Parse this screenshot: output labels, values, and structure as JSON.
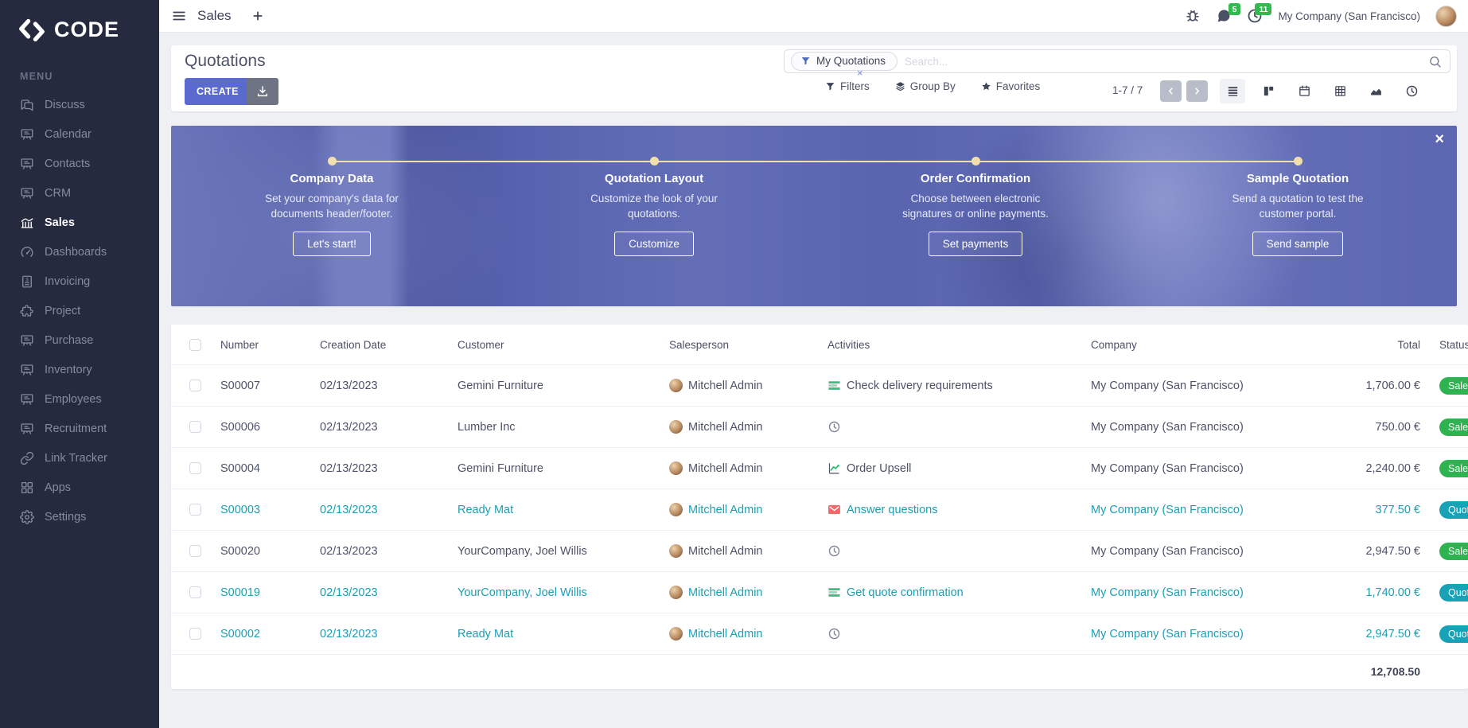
{
  "app": {
    "brand": "CODE",
    "menu_label": "MENU"
  },
  "topbar": {
    "title": "Sales",
    "messages_badge": "5",
    "activities_badge": "11",
    "company": "My Company (San Francisco)"
  },
  "sidebar": {
    "items": [
      {
        "label": "Discuss",
        "icon": "discuss",
        "active": false
      },
      {
        "label": "Calendar",
        "icon": "board",
        "active": false
      },
      {
        "label": "Contacts",
        "icon": "board",
        "active": false
      },
      {
        "label": "CRM",
        "icon": "board",
        "active": false
      },
      {
        "label": "Sales",
        "icon": "bank",
        "active": true
      },
      {
        "label": "Dashboards",
        "icon": "gauge",
        "active": false
      },
      {
        "label": "Invoicing",
        "icon": "invoice",
        "active": false
      },
      {
        "label": "Project",
        "icon": "puzzle",
        "active": false
      },
      {
        "label": "Purchase",
        "icon": "board",
        "active": false
      },
      {
        "label": "Inventory",
        "icon": "board",
        "active": false
      },
      {
        "label": "Employees",
        "icon": "board",
        "active": false
      },
      {
        "label": "Recruitment",
        "icon": "board",
        "active": false
      },
      {
        "label": "Link Tracker",
        "icon": "link",
        "active": false
      },
      {
        "label": "Apps",
        "icon": "grid",
        "active": false
      },
      {
        "label": "Settings",
        "icon": "gear",
        "active": false
      }
    ]
  },
  "control": {
    "title": "Quotations",
    "create_label": "CREATE",
    "facet_label": "My Quotations",
    "facet_remove": "×",
    "search_placeholder": "Search...",
    "filters_label": "Filters",
    "group_by_label": "Group By",
    "favorites_label": "Favorites",
    "pager": "1-7 / 7",
    "views": [
      {
        "name": "list",
        "active": true
      },
      {
        "name": "kanban",
        "active": false
      },
      {
        "name": "calendar",
        "active": false
      },
      {
        "name": "pivot",
        "active": false
      },
      {
        "name": "graph",
        "active": false
      },
      {
        "name": "activity",
        "active": false
      }
    ]
  },
  "banner": {
    "close": "×",
    "steps": [
      {
        "title": "Company Data",
        "desc": "Set your company's data for documents header/footer.",
        "button": "Let's start!"
      },
      {
        "title": "Quotation Layout",
        "desc": "Customize the look of your quotations.",
        "button": "Customize"
      },
      {
        "title": "Order Confirmation",
        "desc": "Choose between electronic signatures or online payments.",
        "button": "Set payments"
      },
      {
        "title": "Sample Quotation",
        "desc": "Send a quotation to test the customer portal.",
        "button": "Send sample"
      }
    ]
  },
  "table": {
    "headers": [
      "Number",
      "Creation Date",
      "Customer",
      "Salesperson",
      "Activities",
      "Company",
      "Total",
      "Status"
    ],
    "rows": [
      {
        "number": "S00007",
        "date": "02/13/2023",
        "customer": "Gemini Furniture",
        "salesperson": "Mitchell Admin",
        "activity": {
          "icon": "tasks",
          "label": "Check delivery requirements"
        },
        "company": "My Company (San Francisco)",
        "total": "1,706.00 €",
        "status": {
          "label": "Sales Order",
          "type": "sale"
        },
        "highlight": false
      },
      {
        "number": "S00006",
        "date": "02/13/2023",
        "customer": "Lumber Inc",
        "salesperson": "Mitchell Admin",
        "activity": {
          "icon": "aclock",
          "label": ""
        },
        "company": "My Company (San Francisco)",
        "total": "750.00 €",
        "status": {
          "label": "Sales Order",
          "type": "sale"
        },
        "highlight": false
      },
      {
        "number": "S00004",
        "date": "02/13/2023",
        "customer": "Gemini Furniture",
        "salesperson": "Mitchell Admin",
        "activity": {
          "icon": "chartup",
          "label": "Order Upsell"
        },
        "company": "My Company (San Francisco)",
        "total": "2,240.00 €",
        "status": {
          "label": "Sales Order",
          "type": "sale"
        },
        "highlight": false
      },
      {
        "number": "S00003",
        "date": "02/13/2023",
        "customer": "Ready Mat",
        "salesperson": "Mitchell Admin",
        "activity": {
          "icon": "envelope",
          "label": "Answer questions"
        },
        "company": "My Company (San Francisco)",
        "total": "377.50 €",
        "status": {
          "label": "Quotation Sent",
          "type": "quotation"
        },
        "highlight": true
      },
      {
        "number": "S00020",
        "date": "02/13/2023",
        "customer": "YourCompany, Joel Willis",
        "salesperson": "Mitchell Admin",
        "activity": {
          "icon": "aclock",
          "label": ""
        },
        "company": "My Company (San Francisco)",
        "total": "2,947.50 €",
        "status": {
          "label": "Sales Order",
          "type": "sale"
        },
        "highlight": false
      },
      {
        "number": "S00019",
        "date": "02/13/2023",
        "customer": "YourCompany, Joel Willis",
        "salesperson": "Mitchell Admin",
        "activity": {
          "icon": "tasks",
          "label": "Get quote confirmation"
        },
        "company": "My Company (San Francisco)",
        "total": "1,740.00 €",
        "status": {
          "label": "Quotation Sent",
          "type": "quotation"
        },
        "highlight": true
      },
      {
        "number": "S00002",
        "date": "02/13/2023",
        "customer": "Ready Mat",
        "salesperson": "Mitchell Admin",
        "activity": {
          "icon": "aclock",
          "label": ""
        },
        "company": "My Company (San Francisco)",
        "total": "2,947.50 €",
        "status": {
          "label": "Quotation Sent",
          "type": "quotation"
        },
        "highlight": true
      }
    ],
    "footer_total": "12,708.50"
  },
  "colors": {
    "sidebar_bg": "#262a3e",
    "accent_create": "#5b6ace",
    "badge_sale": "#2fb350",
    "badge_quotation": "#18a2b8",
    "topbar_badge": "#33b94e",
    "highlight_text": "#1a9fb4",
    "banner_timeline": "#f2dfae"
  }
}
